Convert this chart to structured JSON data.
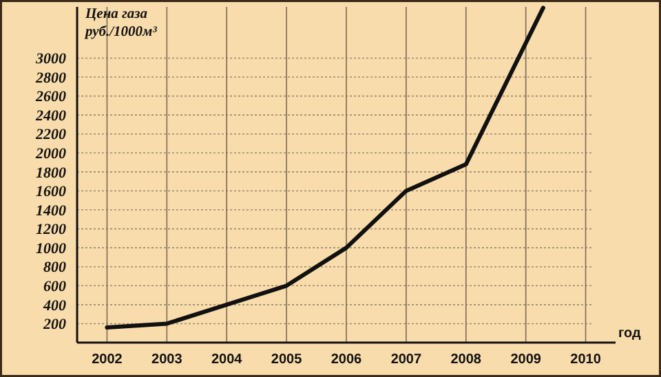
{
  "chart_data": {
    "type": "line",
    "ylabel": "Цена газа руб./1000м³",
    "xlabel": "год",
    "x": [
      2002,
      2003,
      2004,
      2005,
      2006,
      2007,
      2008,
      2009.29
    ],
    "series": [
      {
        "color": "#111111",
        "values": [
          160,
          200,
          400,
          600,
          1000,
          1600,
          1880,
          3530
        ]
      }
    ],
    "xlim": [
      2001.5,
      2010.5
    ],
    "xticks": [
      2002,
      2003,
      2004,
      2005,
      2006,
      2007,
      2008,
      2009,
      2010
    ],
    "ylim": [
      0,
      3540
    ],
    "yticks": [
      200,
      400,
      600,
      800,
      1000,
      1200,
      1400,
      1600,
      1800,
      2000,
      2200,
      2400,
      2600,
      2800,
      3000
    ],
    "grid": true,
    "line_style": "solid",
    "marker": "none"
  }
}
